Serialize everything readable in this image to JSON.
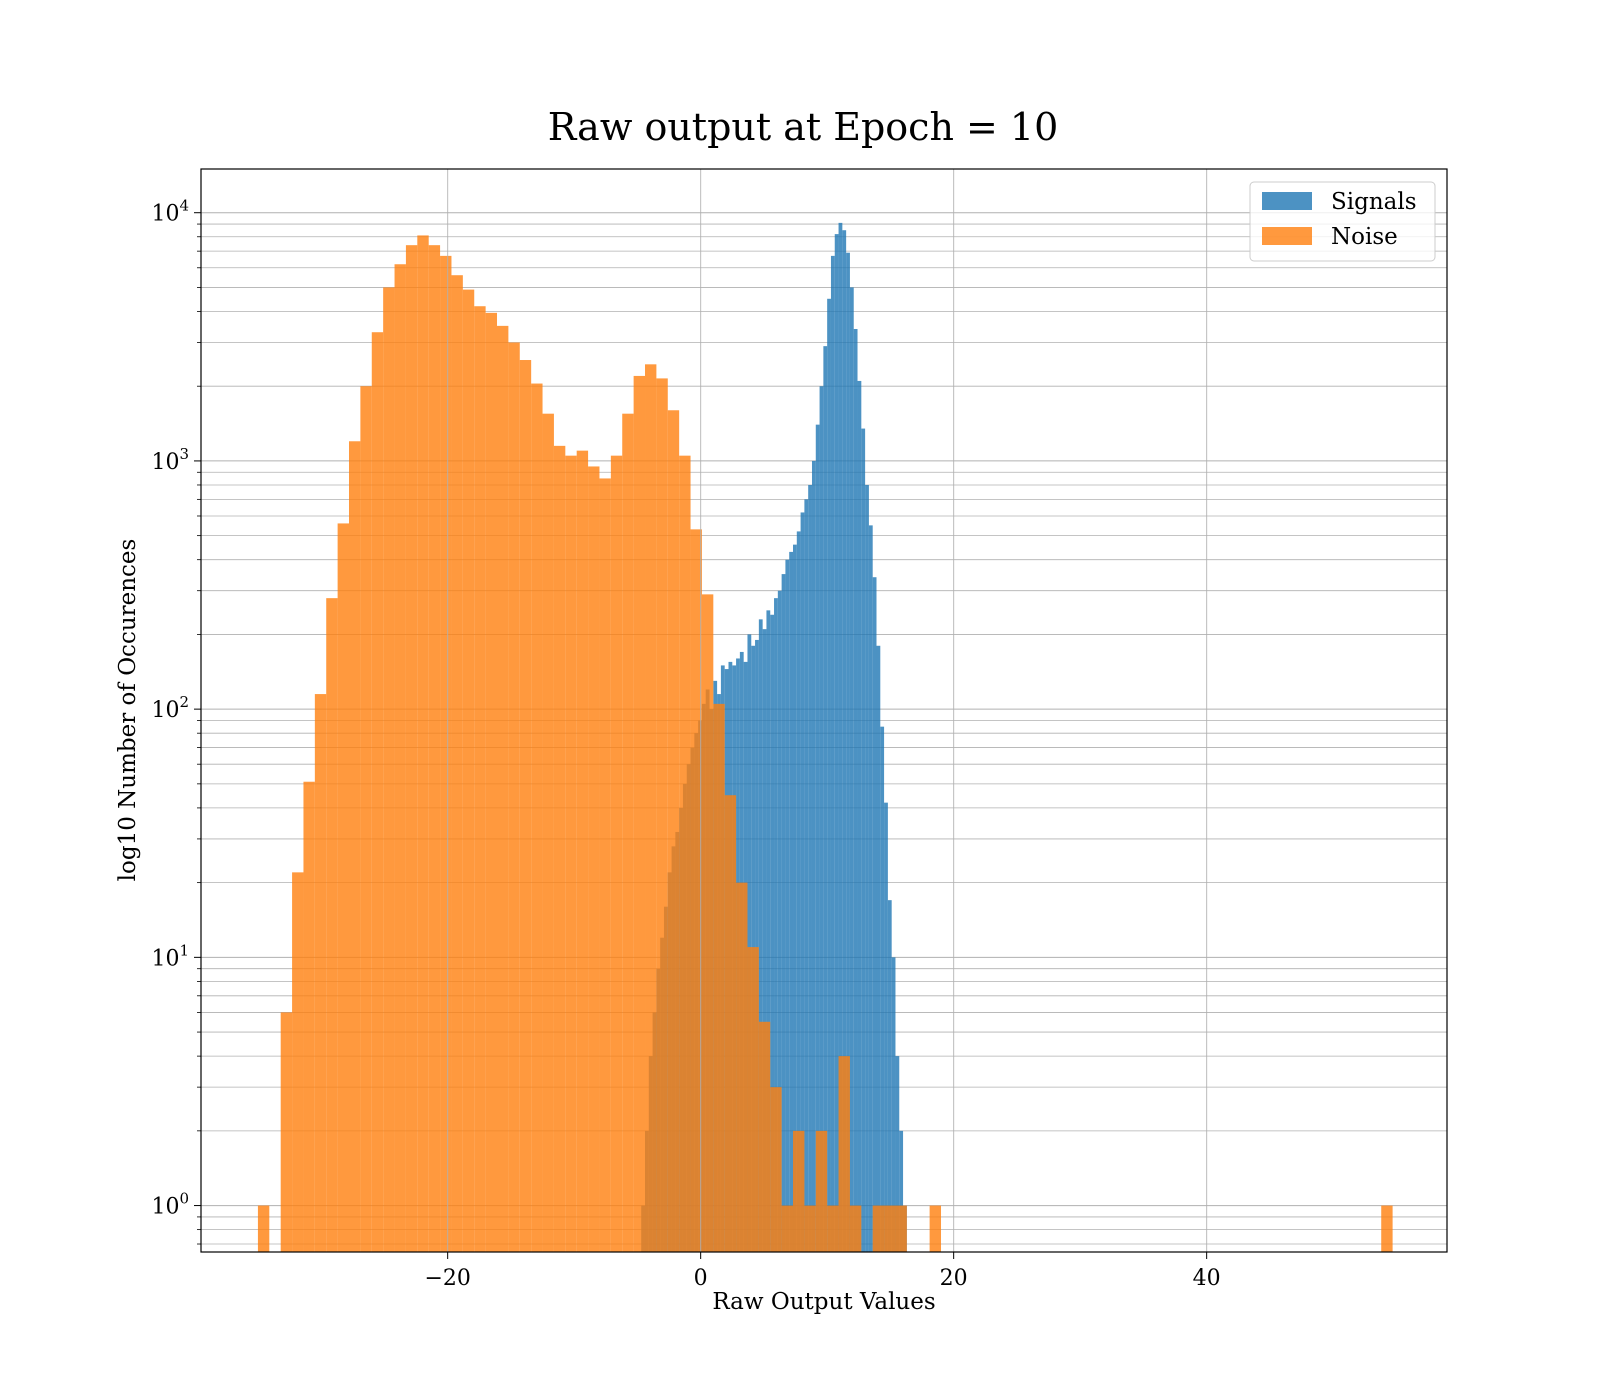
{
  "chart_data": {
    "type": "bar",
    "title": "Raw output at Epoch = 10",
    "xlabel": "Raw Output Values",
    "ylabel": "log10 Number of Occurences",
    "yscale": "log",
    "xlim": [
      -39.5,
      59
    ],
    "ylim": [
      0.65,
      15000
    ],
    "grid": true,
    "legend_position": "top-right",
    "xticks": [
      {
        "value": -20,
        "label": "−20"
      },
      {
        "value": 0,
        "label": "0"
      },
      {
        "value": 20,
        "label": "20"
      },
      {
        "value": 40,
        "label": "40"
      }
    ],
    "yticks": [
      {
        "value": 1,
        "base": "10",
        "exp": "0"
      },
      {
        "value": 10,
        "base": "10",
        "exp": "1"
      },
      {
        "value": 100,
        "base": "10",
        "exp": "2"
      },
      {
        "value": 1000,
        "base": "10",
        "exp": "3"
      },
      {
        "value": 10000,
        "base": "10",
        "exp": "4"
      }
    ],
    "series": [
      {
        "name": "Signals",
        "color": "#1f77b4",
        "opacity": 0.8,
        "edges": [
          -4.7,
          -4.4,
          -4.1,
          -3.8,
          -3.5,
          -3.2,
          -2.9,
          -2.6,
          -2.3,
          -2.0,
          -1.7,
          -1.4,
          -1.1,
          -0.8,
          -0.5,
          -0.2,
          0.1,
          0.4,
          0.7,
          1.0,
          1.3,
          1.6,
          1.9,
          2.2,
          2.5,
          2.8,
          3.1,
          3.4,
          3.7,
          4.0,
          4.3,
          4.6,
          4.9,
          5.2,
          5.5,
          5.8,
          6.1,
          6.4,
          6.7,
          7.0,
          7.3,
          7.6,
          7.9,
          8.2,
          8.5,
          8.8,
          9.1,
          9.4,
          9.7,
          10.0,
          10.3,
          10.6,
          10.9,
          11.2,
          11.5,
          11.8,
          12.1,
          12.4,
          12.7,
          13.0,
          13.3,
          13.6,
          13.9,
          14.2,
          14.5,
          14.8,
          15.1,
          15.4,
          15.7,
          16.0,
          16.3
        ],
        "values": [
          1,
          2,
          4,
          6,
          9,
          12,
          16,
          22,
          28,
          32,
          40,
          50,
          60,
          70,
          80,
          90,
          105,
          120,
          100,
          130,
          115,
          150,
          145,
          155,
          150,
          160,
          170,
          155,
          200,
          180,
          190,
          230,
          210,
          250,
          240,
          280,
          300,
          350,
          400,
          430,
          460,
          520,
          620,
          700,
          800,
          1000,
          1400,
          2000,
          2900,
          4500,
          6700,
          8200,
          9100,
          8500,
          6900,
          5000,
          3400,
          2100,
          1350,
          800,
          550,
          340,
          180,
          85,
          42,
          17,
          10,
          4,
          2,
          1
        ]
      },
      {
        "name": "Noise",
        "color": "#ff7f0e",
        "opacity": 0.8,
        "edges": [
          -35.0,
          -34.1,
          -33.2,
          -32.3,
          -31.4,
          -30.5,
          -29.6,
          -28.7,
          -27.8,
          -26.9,
          -26.0,
          -25.1,
          -24.2,
          -23.3,
          -22.4,
          -21.5,
          -20.6,
          -19.7,
          -18.8,
          -17.9,
          -17.0,
          -16.1,
          -15.2,
          -14.3,
          -13.4,
          -12.5,
          -11.6,
          -10.7,
          -9.8,
          -8.9,
          -8.0,
          -7.1,
          -6.2,
          -5.3,
          -4.4,
          -3.5,
          -2.6,
          -1.7,
          -0.8,
          0.1,
          1.0,
          1.9,
          2.8,
          3.7,
          4.6,
          5.5,
          6.4,
          7.3,
          8.2,
          9.1,
          10.0,
          10.9,
          11.8,
          12.7,
          13.6,
          14.5,
          15.4,
          16.3,
          17.2,
          18.1,
          19.0,
          19.9,
          20.8
        ],
        "values": [
          1,
          0,
          6,
          22,
          51,
          115,
          280,
          560,
          1200,
          2000,
          3300,
          5000,
          6200,
          7400,
          8100,
          7400,
          6700,
          5600,
          4900,
          4200,
          3950,
          3500,
          3000,
          2550,
          2050,
          1550,
          1150,
          1050,
          1100,
          950,
          850,
          1050,
          1550,
          2200,
          2450,
          2150,
          1600,
          1050,
          530,
          290,
          105,
          45,
          20,
          11,
          5.5,
          3,
          1,
          2,
          1,
          2,
          1,
          4,
          1,
          0,
          1,
          1,
          1,
          0,
          0,
          1,
          0,
          0
        ],
        "extra_bars": [
          {
            "x0": 53.8,
            "x1": 54.7,
            "value": 1
          }
        ]
      }
    ]
  }
}
